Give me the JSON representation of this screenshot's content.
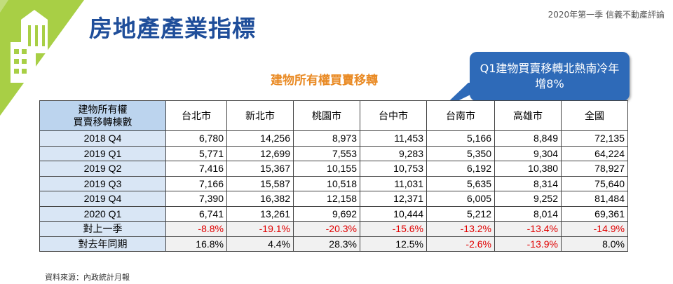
{
  "header": {
    "title": "房地產產業指標",
    "note": "2020年第一季  信義不動產評論"
  },
  "subtitle": "建物所有權買賣移轉",
  "callout": "Q1建物買賣移轉北熱南冷年增8%",
  "table": {
    "corner": [
      "建物所有權",
      "買賣移轉棟數"
    ],
    "columns": [
      "台北市",
      "新北市",
      "桃園市",
      "台中市",
      "台南市",
      "高雄市",
      "全國"
    ],
    "rows": [
      {
        "label": "2018 Q4",
        "values": [
          "6,780",
          "14,256",
          "8,973",
          "11,453",
          "5,166",
          "8,849",
          "72,135"
        ]
      },
      {
        "label": "2019 Q1",
        "values": [
          "5,771",
          "12,699",
          "7,553",
          "9,283",
          "5,350",
          "9,304",
          "64,224"
        ]
      },
      {
        "label": "2019 Q2",
        "values": [
          "7,416",
          "15,367",
          "10,155",
          "10,753",
          "6,192",
          "10,380",
          "78,927"
        ]
      },
      {
        "label": "2019 Q3",
        "values": [
          "7,166",
          "15,587",
          "10,518",
          "11,031",
          "5,635",
          "8,314",
          "75,640"
        ]
      },
      {
        "label": "2019 Q4",
        "values": [
          "7,390",
          "16,382",
          "12,158",
          "12,371",
          "6,005",
          "9,252",
          "81,484"
        ]
      },
      {
        "label": "2020 Q1",
        "values": [
          "6,741",
          "13,261",
          "9,692",
          "10,444",
          "5,212",
          "8,014",
          "69,361"
        ]
      },
      {
        "label": "對上一季",
        "values": [
          "-8.8%",
          "-19.1%",
          "-20.3%",
          "-15.6%",
          "-13.2%",
          "-13.4%",
          "-14.9%"
        ]
      },
      {
        "label": "對去年同期",
        "values": [
          "16.8%",
          "4.4%",
          "28.3%",
          "12.5%",
          "-2.6%",
          "-13.9%",
          "8.0%"
        ]
      }
    ]
  },
  "source": "資料來源：內政統計月報",
  "colors": {
    "title": "#1f4e9a",
    "subtitle": "#e98a24",
    "callout": "#2e6ab8",
    "header_cell": "#bcd4ee",
    "row_label": "#d9e6f5",
    "negative": "#e00000",
    "logo_green": "#9cc83c"
  },
  "icons": {
    "logo": "building-logo-icon"
  }
}
